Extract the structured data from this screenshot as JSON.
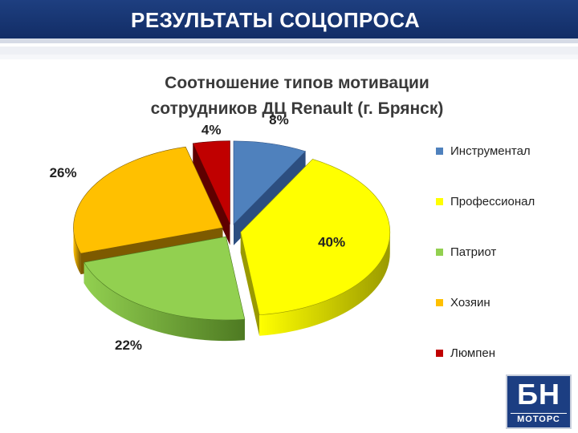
{
  "header": {
    "title": "РЕЗУЛЬТАТЫ СОЦОПРОСА"
  },
  "logo": {
    "main": "БН",
    "sub": "МОТОРС"
  },
  "chart_data": {
    "type": "pie",
    "title_lines": [
      "Соотношение типов мотивации",
      "сотрудников ДЦ Renault (г. Брянск)"
    ],
    "legend_position": "right",
    "unit": "%",
    "slices": [
      {
        "name": "Инструментал",
        "value": 8,
        "label": "8%",
        "color": "#4f81bd",
        "dark": "#2c4e80"
      },
      {
        "name": "Профессионал",
        "value": 40,
        "label": "40%",
        "color": "#ffff00",
        "dark": "#9a9a00"
      },
      {
        "name": "Патриот",
        "value": 22,
        "label": "22%",
        "color": "#92d050",
        "dark": "#4e7a22"
      },
      {
        "name": "Хозяин",
        "value": 26,
        "label": "26%",
        "color": "#ffc000",
        "dark": "#7d5a00"
      },
      {
        "name": "Люмпен",
        "value": 4,
        "label": "4%",
        "color": "#c00000",
        "dark": "#5e0000"
      }
    ]
  }
}
